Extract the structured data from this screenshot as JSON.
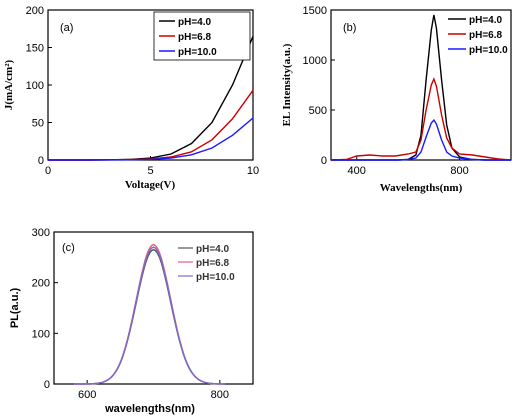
{
  "chart_data": [
    {
      "panel": "(a)",
      "type": "line",
      "xlabel": "Voltage(V)",
      "ylabel": "J(mA/cm²)",
      "xlim": [
        0,
        10
      ],
      "ylim": [
        0,
        200
      ],
      "xticks": [
        "0",
        "5",
        "10"
      ],
      "yticks": [
        "0",
        "50",
        "100",
        "150",
        "200"
      ],
      "legend_position": "top-right",
      "series": [
        {
          "name": "pH=4.0",
          "color": "#000000",
          "points": [
            [
              0,
              0
            ],
            [
              2,
              0
            ],
            [
              3,
              0.3
            ],
            [
              4,
              0.8
            ],
            [
              5,
              2.5
            ],
            [
              6,
              8
            ],
            [
              7,
              22
            ],
            [
              8,
              50
            ],
            [
              9,
              100
            ],
            [
              10,
              165
            ]
          ]
        },
        {
          "name": "pH=6.8",
          "color": "#cc0000",
          "points": [
            [
              0,
              0
            ],
            [
              2,
              0
            ],
            [
              3,
              0.2
            ],
            [
              4,
              0.5
            ],
            [
              5,
              1.5
            ],
            [
              6,
              4
            ],
            [
              7,
              11
            ],
            [
              8,
              27
            ],
            [
              9,
              55
            ],
            [
              10,
              93
            ]
          ]
        },
        {
          "name": "pH=10.0",
          "color": "#1a1aff",
          "points": [
            [
              0,
              0
            ],
            [
              2,
              0
            ],
            [
              3,
              0.1
            ],
            [
              4,
              0.3
            ],
            [
              5,
              0.9
            ],
            [
              6,
              2.5
            ],
            [
              7,
              7
            ],
            [
              8,
              16
            ],
            [
              9,
              33
            ],
            [
              10,
              56
            ]
          ]
        }
      ]
    },
    {
      "panel": "(b)",
      "type": "line",
      "xlabel": "Wavelengths(nm)",
      "ylabel": "EL Intensity(a.u.)",
      "xlim": [
        300,
        1000
      ],
      "ylim": [
        0,
        1500
      ],
      "xticks": [
        "400",
        "800"
      ],
      "yticks": [
        "0",
        "500",
        "1000",
        "1500"
      ],
      "legend_position": "top-right",
      "series": [
        {
          "name": "pH=4.0",
          "color": "#000000",
          "points": [
            [
              300,
              0
            ],
            [
              560,
              0
            ],
            [
              600,
              5
            ],
            [
              630,
              50
            ],
            [
              650,
              250
            ],
            [
              670,
              800
            ],
            [
              690,
              1300
            ],
            [
              700,
              1450
            ],
            [
              710,
              1320
            ],
            [
              730,
              800
            ],
            [
              750,
              350
            ],
            [
              770,
              120
            ],
            [
              800,
              30
            ],
            [
              850,
              5
            ],
            [
              900,
              0
            ],
            [
              1000,
              0
            ]
          ]
        },
        {
          "name": "pH=6.8",
          "color": "#cc0000",
          "points": [
            [
              300,
              0
            ],
            [
              360,
              5
            ],
            [
              400,
              40
            ],
            [
              450,
              50
            ],
            [
              500,
              40
            ],
            [
              550,
              40
            ],
            [
              600,
              60
            ],
            [
              630,
              80
            ],
            [
              650,
              200
            ],
            [
              670,
              500
            ],
            [
              690,
              750
            ],
            [
              700,
              810
            ],
            [
              710,
              740
            ],
            [
              730,
              450
            ],
            [
              750,
              220
            ],
            [
              770,
              120
            ],
            [
              800,
              60
            ],
            [
              850,
              50
            ],
            [
              900,
              30
            ],
            [
              950,
              10
            ],
            [
              1000,
              0
            ]
          ]
        },
        {
          "name": "pH=10.0",
          "color": "#1a1aff",
          "points": [
            [
              300,
              0
            ],
            [
              560,
              0
            ],
            [
              600,
              5
            ],
            [
              630,
              20
            ],
            [
              650,
              80
            ],
            [
              670,
              230
            ],
            [
              690,
              370
            ],
            [
              700,
              400
            ],
            [
              710,
              360
            ],
            [
              730,
              200
            ],
            [
              750,
              80
            ],
            [
              770,
              40
            ],
            [
              800,
              20
            ],
            [
              850,
              5
            ],
            [
              900,
              0
            ],
            [
              1000,
              0
            ]
          ]
        }
      ]
    },
    {
      "panel": "(c)",
      "type": "line",
      "xlabel": "wavelengths(nm)",
      "ylabel": "PL(a.u.)",
      "xlim": [
        550,
        850
      ],
      "ylim": [
        0,
        300
      ],
      "xticks": [
        "600",
        "800"
      ],
      "yticks": [
        "0",
        "100",
        "200",
        "300"
      ],
      "legend_position": "top-right",
      "series": [
        {
          "name": "pH=4.0",
          "color": "#555555",
          "peak": [
            700,
            265
          ],
          "sigma": 26
        },
        {
          "name": "pH=6.8",
          "color": "#e06080",
          "peak": [
            700,
            275
          ],
          "sigma": 26
        },
        {
          "name": "pH=10.0",
          "color": "#7a6acc",
          "peak": [
            700,
            270
          ],
          "sigma": 26
        }
      ]
    }
  ]
}
